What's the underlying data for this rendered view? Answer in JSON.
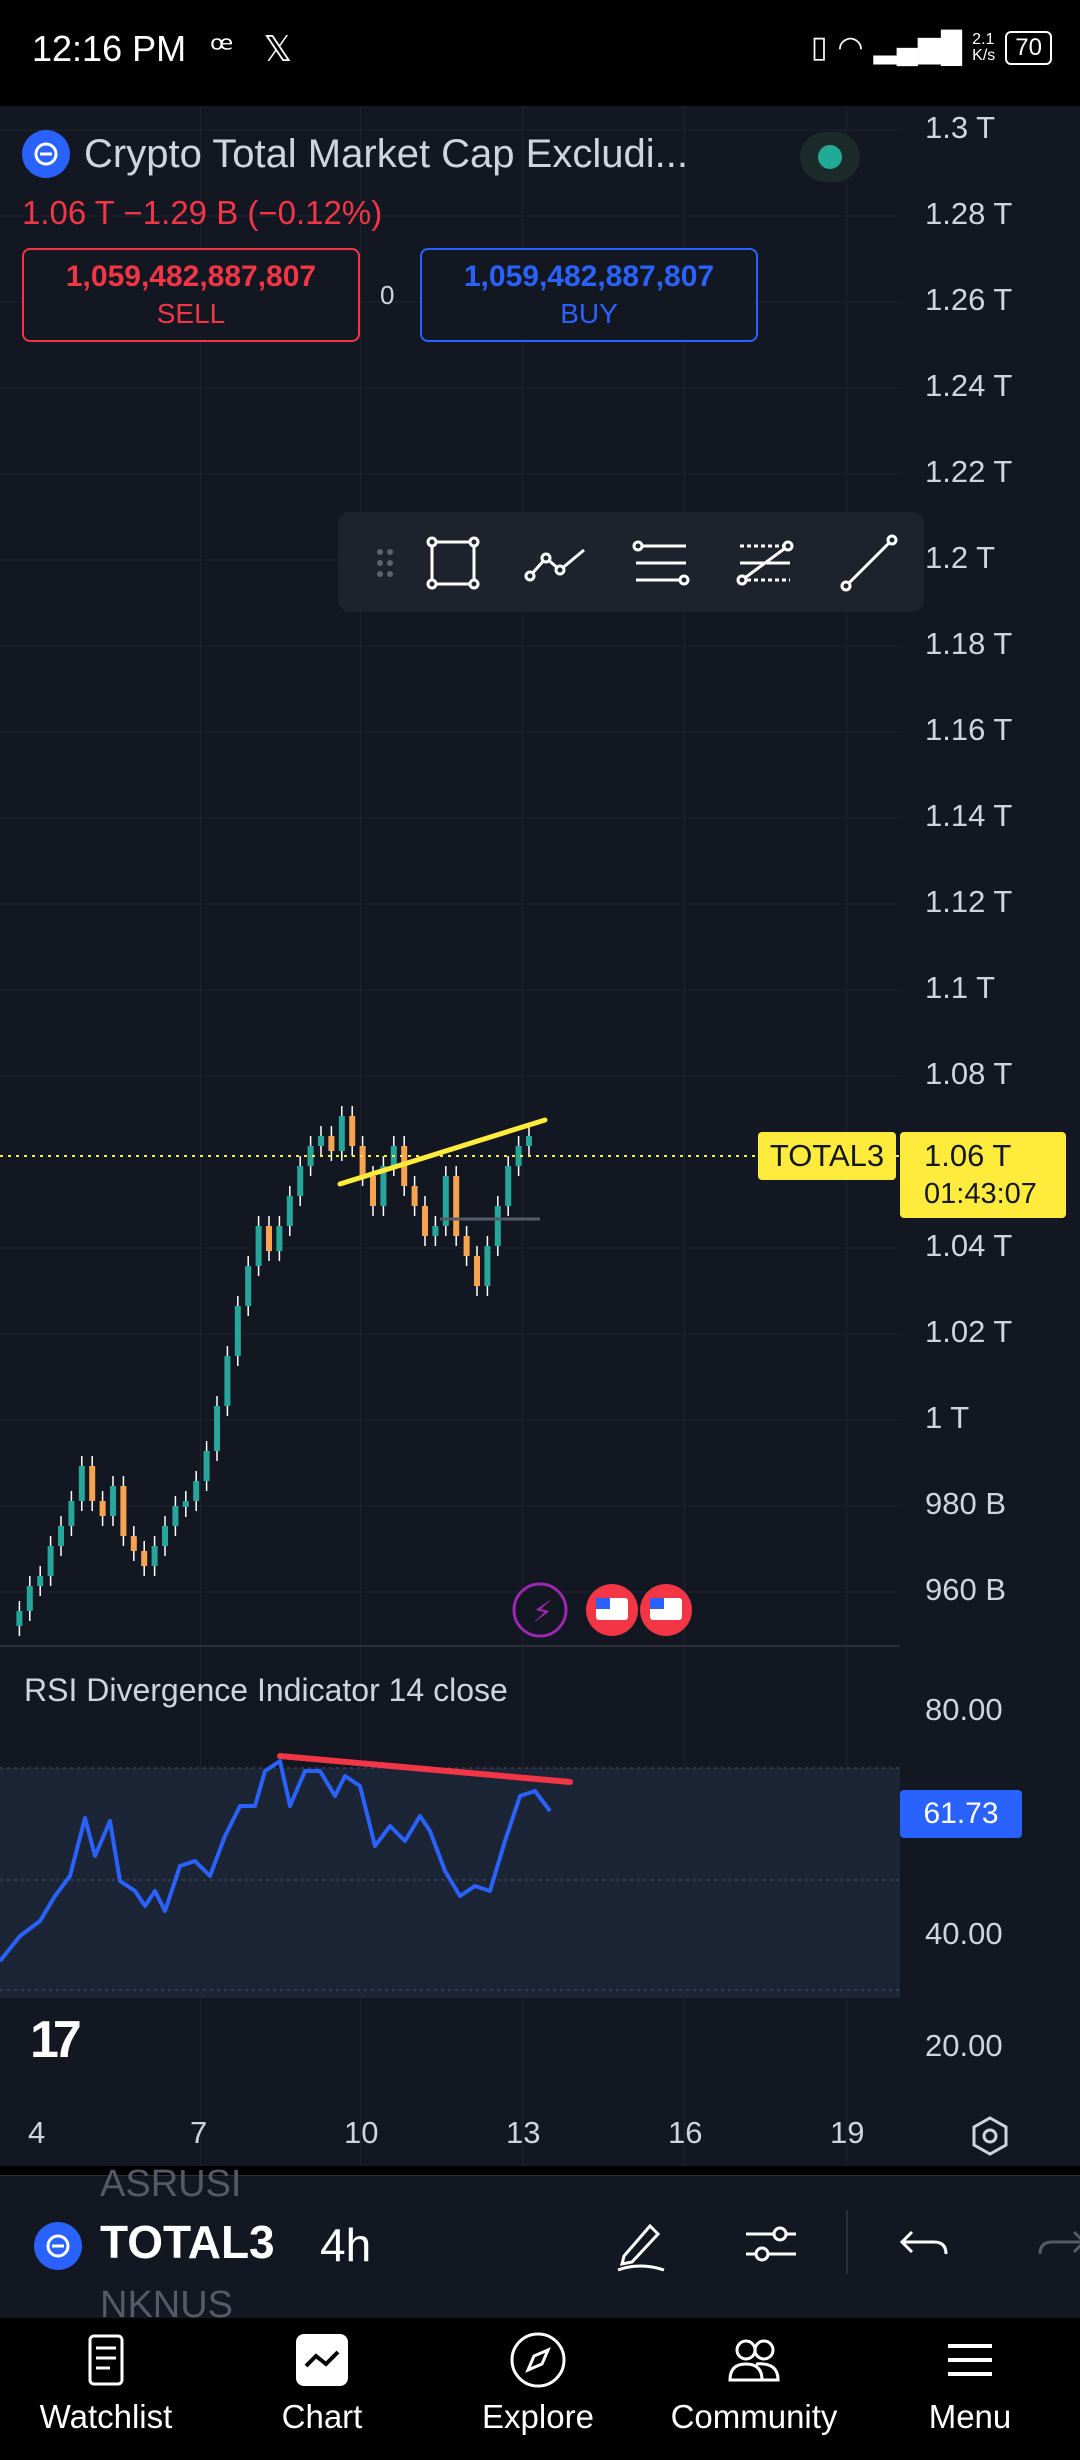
{
  "status_bar": {
    "time": "12:16 PM",
    "net_speed_top": "2.1",
    "net_speed_bottom": "K/s",
    "battery": "70"
  },
  "symbol": {
    "title": "Crypto Total Market Cap Excludi...",
    "change": "1.06 T  −1.29 B (−0.12%)"
  },
  "trade": {
    "sell_price": "1,059,482,887,807",
    "sell_label": "SELL",
    "spread": "0",
    "buy_price": "1,059,482,887,807",
    "buy_label": "BUY"
  },
  "price_axis": [
    "1.3 T",
    "1.28 T",
    "1.26 T",
    "1.24 T",
    "1.22 T",
    "1.2 T",
    "1.18 T",
    "1.16 T",
    "1.14 T",
    "1.12 T",
    "1.1 T",
    "1.08 T",
    "1.04 T",
    "1.02 T",
    "1 T",
    "980 B",
    "960 B"
  ],
  "current": {
    "symbol_tag": "TOTAL3",
    "price": "1.06 T",
    "countdown": "01:43:07"
  },
  "rsi": {
    "title": "RSI Divergence Indicator 14 close",
    "value": "61.73",
    "axis": [
      "80.00",
      "40.00",
      "20.00"
    ]
  },
  "date_axis": [
    "4",
    "7",
    "10",
    "13",
    "16",
    "19"
  ],
  "bottom_toolbar": {
    "symbol": "TOTAL3",
    "interval": "4h",
    "ghost_above": "ASRUSI",
    "ghost_below": "NKNUS"
  },
  "nav": {
    "watchlist": "Watchlist",
    "chart": "Chart",
    "explore": "Explore",
    "community": "Community",
    "menu": "Menu"
  },
  "colors": {
    "bg": "#131722",
    "up": "#26a69a",
    "down": "#f7a350",
    "yellow": "#ffeb3b",
    "rsi_line": "#2962ff",
    "divergence": "#f23645"
  },
  "chart_data": {
    "type": "candlestick",
    "interval": "4h",
    "x_ticks": [
      "4",
      "7",
      "10",
      "13",
      "16",
      "19"
    ],
    "y_ticks_price": [
      "1.3 T",
      "1.28 T",
      "1.26 T",
      "1.24 T",
      "1.22 T",
      "1.2 T",
      "1.18 T",
      "1.16 T",
      "1.14 T",
      "1.12 T",
      "1.1 T",
      "1.08 T",
      "1.04 T",
      "1.02 T",
      "1 T",
      "980 B",
      "960 B"
    ],
    "last_price": "1.06 T",
    "rsi_axis": [
      "80.00",
      "40.00",
      "20.00"
    ],
    "rsi_last": "61.73"
  }
}
